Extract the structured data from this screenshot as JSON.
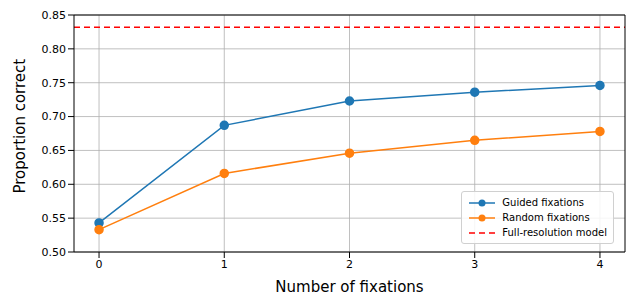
{
  "chart_data": {
    "type": "line",
    "x_label": "Number of fixations",
    "y_label": "Proportion correct",
    "x": [
      0,
      1,
      2,
      3,
      4
    ],
    "series": [
      {
        "name": "Guided fixations",
        "color": "#1f77b4",
        "marker": "o",
        "values": [
          0.543,
          0.687,
          0.723,
          0.736,
          0.746
        ]
      },
      {
        "name": "Random fixations",
        "color": "#ff7f0e",
        "marker": "o",
        "values": [
          0.533,
          0.616,
          0.646,
          0.665,
          0.678
        ]
      },
      {
        "name": "Full-resolution model",
        "type": "reference_line",
        "color": "#ff0000",
        "line_style": "dashed",
        "y": 0.832
      }
    ],
    "xlim": [
      -0.2,
      4.2
    ],
    "xticks": [
      0,
      1,
      2,
      3,
      4
    ],
    "ylim": [
      0.5,
      0.85
    ],
    "yticks": [
      {
        "value": 0.5,
        "label": "0.50"
      },
      0.55,
      {
        "value": 0.6,
        "label": "0.60"
      },
      0.65,
      {
        "value": 0.7,
        "label": "0.70"
      },
      0.75,
      {
        "value": 0.8,
        "label": "0.80"
      },
      0.85
    ],
    "grid": true,
    "legend": "lower right"
  }
}
